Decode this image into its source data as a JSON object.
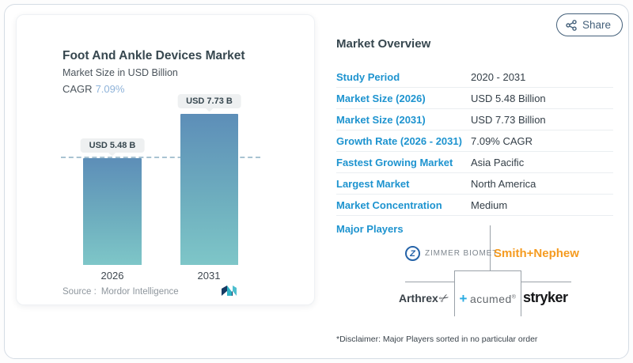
{
  "share": {
    "label": "Share"
  },
  "card": {
    "title": "Foot And Ankle Devices Market",
    "subtitle": "Market Size in USD Billion",
    "cagr_label": "CAGR",
    "cagr_value": "7.09%",
    "source_label": "Source :",
    "source_value": "Mordor Intelligence"
  },
  "chart_data": {
    "type": "bar",
    "categories": [
      "2026",
      "2031"
    ],
    "values": [
      5.48,
      7.73
    ],
    "value_labels": [
      "USD 5.48 B",
      "USD 7.73 B"
    ],
    "title": "Foot And Ankle Devices Market",
    "ylabel": "Market Size in USD Billion",
    "dashed_reference_value": 5.48,
    "ylim": [
      0,
      8.3
    ],
    "bar_gradient_top": "#5d8eb8",
    "bar_gradient_bottom": "#7ec6c8",
    "legend": "none",
    "grid": "off"
  },
  "overview": {
    "heading": "Market Overview",
    "rows": [
      {
        "label": "Study Period",
        "value": "2020 - 2031"
      },
      {
        "label": "Market Size (2026)",
        "value": "USD 5.48 Billion"
      },
      {
        "label": "Market Size (2031)",
        "value": "USD 7.73 Billion"
      },
      {
        "label": "Growth Rate (2026 - 2031)",
        "value": "7.09% CAGR"
      },
      {
        "label": "Fastest Growing Market",
        "value": "Asia Pacific"
      },
      {
        "label": "Largest Market",
        "value": "North America"
      },
      {
        "label": "Market Concentration",
        "value": "Medium"
      }
    ],
    "major_players_label": "Major Players",
    "disclaimer": "*Disclaimer: Major Players sorted in no particular order"
  },
  "players": {
    "zimmer": {
      "monogram": "Z",
      "text": "ZIMMER BIOMET"
    },
    "smith": {
      "text": "Smith+Nephew"
    },
    "arthrex": {
      "text": "Arthrex"
    },
    "acumed": {
      "plus": "+",
      "text": "acumed",
      "reg": "®"
    },
    "stryker": {
      "text": "stryker"
    }
  },
  "icons": {
    "scissors": "✂"
  },
  "colors": {
    "accent_blue": "#1d93cf",
    "heading_dark": "#37474f",
    "cagr_blue": "#8fb3d9",
    "smith_orange": "#f59b20",
    "acumed_cyan": "#29abe2",
    "zimmer_blue": "#2563a8",
    "share_slate": "#44607a",
    "mordor_navy": "#173a63",
    "mordor_teal": "#2fb4c7"
  }
}
